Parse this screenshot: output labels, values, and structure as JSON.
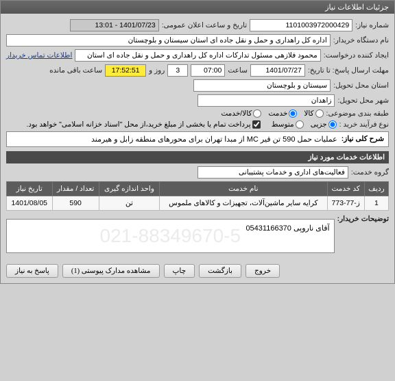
{
  "window_title": "جزئیات اطلاعات نیاز",
  "fields": {
    "need_no_label": "شماره نیاز:",
    "need_no": "1101003972000429",
    "announce_label": "تاریخ و ساعت اعلان عمومی:",
    "announce_value": "1401/07/23 - 13:01",
    "buyer_name_label": "نام دستگاه خریدار:",
    "buyer_name": "اداره کل راهداری و حمل و نقل جاده ای استان سیستان و بلوچستان",
    "requester_label": "ایجاد کننده درخواست:",
    "requester": "محمود فلازهی مسئول تدارکات اداره کل راهداری و حمل و نقل جاده ای استان",
    "contact_link": "اطلاعات تماس خریدار",
    "deadline_label": "مهلت ارسال پاسخ: تا تاریخ:",
    "deadline_date": "1401/07/27",
    "time_label": "ساعت",
    "deadline_time": "07:00",
    "days_label": "روز و",
    "days_value": "3",
    "countdown": "17:52:51",
    "remain_label": "ساعت باقی مانده",
    "delivery_province_label": "استان محل تحویل:",
    "delivery_province": "سیستان و بلوچستان",
    "delivery_city_label": "شهر محل تحویل:",
    "delivery_city": "زاهدان",
    "class_label": "طبقه بندی موضوعی:",
    "class_opts": {
      "kala": "کالا",
      "khadamat": "خدمت",
      "both": "کالا/خدمت"
    },
    "process_label": "نوع فرآیند خرید :",
    "process_opts": {
      "partial": "جزیی",
      "medium": "متوسط"
    },
    "credit_note": "پرداخت تمام یا بخشی از مبلغ خرید،از محل \"اسناد خزانه اسلامی\" خواهد بود."
  },
  "desc": {
    "label": "شرح کلی نیاز:",
    "text": "عملیات حمل 590 تن قیر MC از مبدا تهران برای محورهای منطقه زابل و هیرمند"
  },
  "services_hdr": "اطلاعات خدمات مورد نیاز",
  "service_group_label": "گروه خدمت:",
  "service_group": "فعالیت‌های اداری و خدمات پشتیبانی",
  "table": {
    "headers": [
      "ردیف",
      "کد خدمت",
      "نام خدمت",
      "واحد اندازه گیری",
      "تعداد / مقدار",
      "تاریخ نیاز"
    ],
    "rows": [
      [
        "1",
        "ز-77-773",
        "کرایه سایر ماشین‌آلات، تجهیزات و کالاهای ملموس",
        "تن",
        "590",
        "1401/08/05"
      ]
    ]
  },
  "buyer_notes_label": "توضیحات خریدار:",
  "buyer_notes": "آقای ناروپی 05431166370",
  "watermark": "021-88349670-5",
  "buttons": {
    "respond": "پاسخ به نیاز",
    "attachments": "مشاهده مدارک پیوستی (1)",
    "print": "چاپ",
    "back": "بازگشت",
    "exit": "خروج"
  },
  "colors": {
    "header_bg": "#5c5c5c",
    "countdown_bg": "#ffeb3b"
  }
}
